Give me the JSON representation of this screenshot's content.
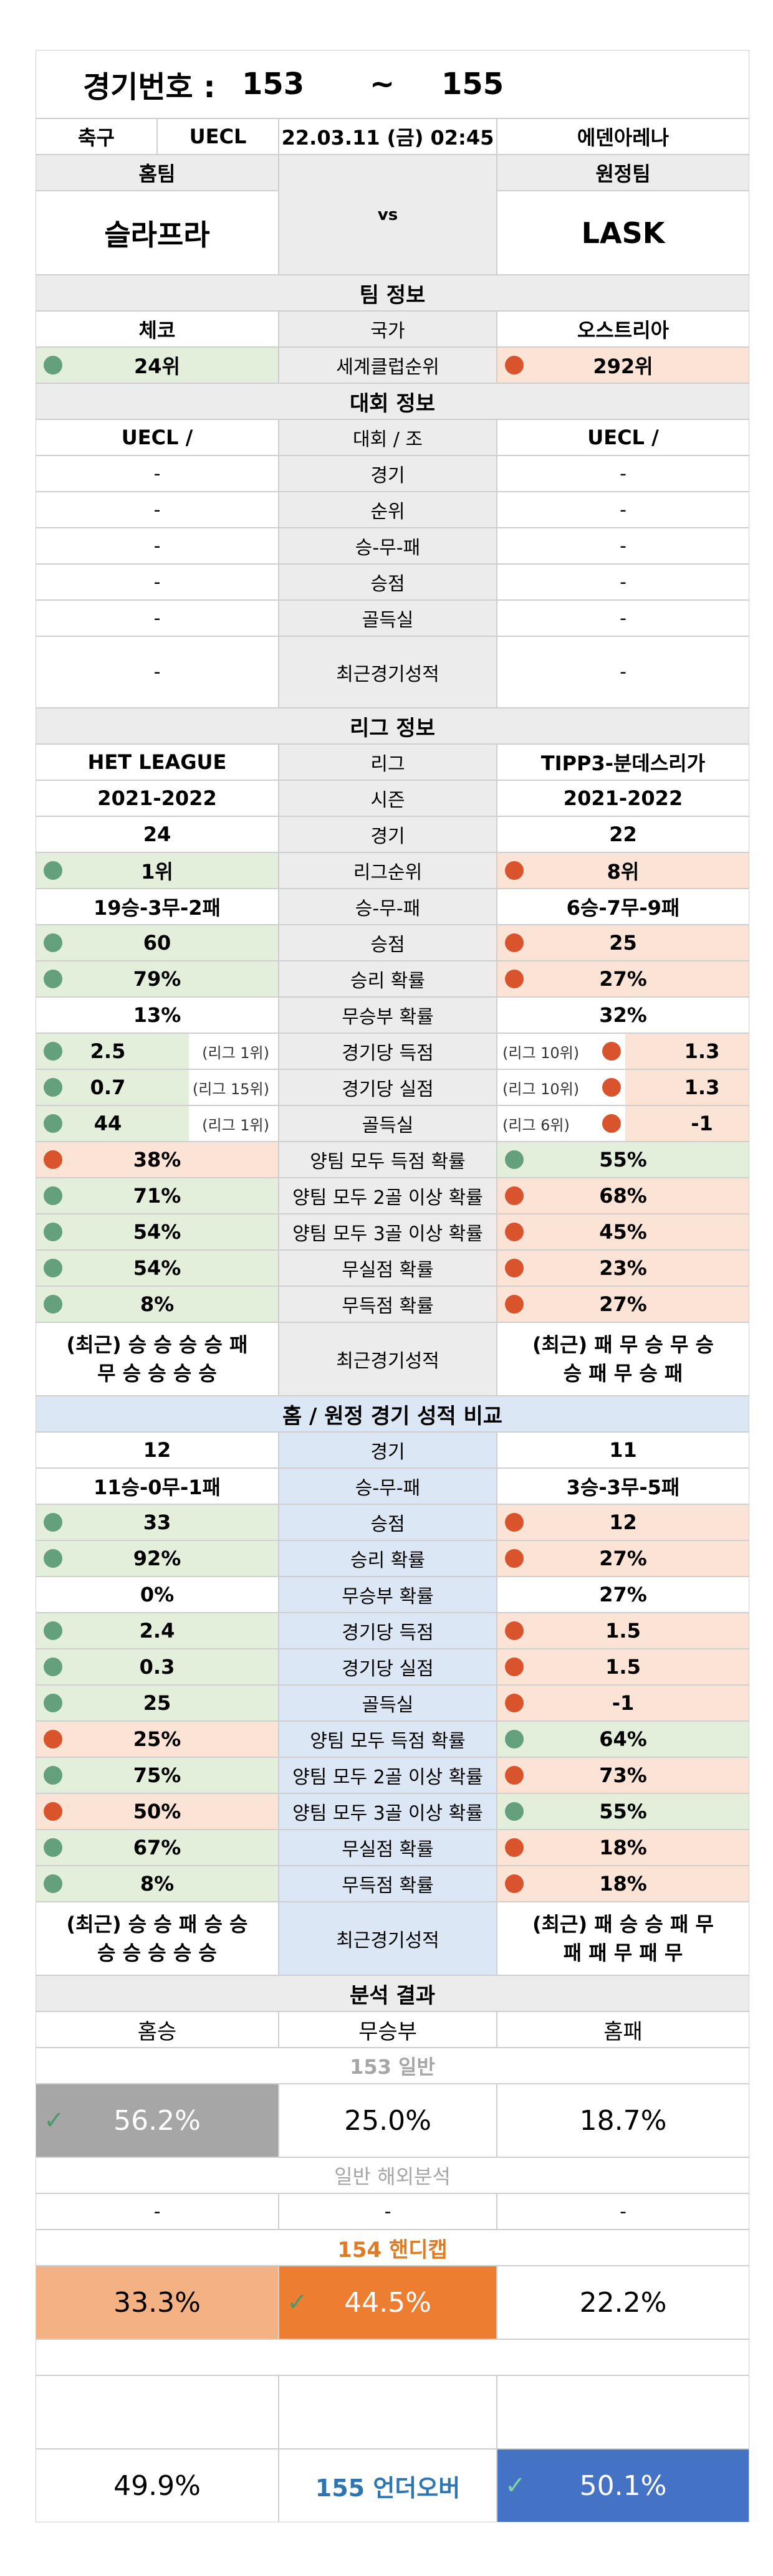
{
  "header": {
    "label": "경기번호 :",
    "from": "153",
    "tilde": "~",
    "to": "155",
    "sport": "축구",
    "league": "UECL",
    "datetime": "22.03.11 (금) 02:45",
    "venue": "에덴아레나",
    "home_label": "홈팀",
    "away_label": "원정팀",
    "vs": "vs",
    "home_team": "슬라프라",
    "away_team": "LASK"
  },
  "team_info": {
    "title": "팀 정보",
    "country_label": "국가",
    "home_country": "체코",
    "away_country": "오스트리아",
    "rank_label": "세계클럽순위",
    "home_rank": "24위",
    "away_rank": "292위"
  },
  "tournament": {
    "title": "대회 정보",
    "group_label": "대회 / 조",
    "home_group": "UECL /",
    "away_group": "UECL /",
    "dash": "-",
    "rows": [
      "경기",
      "순위",
      "승-무-패",
      "승점",
      "골득실"
    ],
    "recent_label": "최근경기성적"
  },
  "league": {
    "title": "리그 정보",
    "league_label": "리그",
    "home_league": "HET LEAGUE",
    "away_league": "TIPP3-분데스리가",
    "season_label": "시즌",
    "home_season": "2021-2022",
    "away_season": "2021-2022",
    "games_label": "경기",
    "home_games": "24",
    "away_games": "22",
    "rank_label": "리그순위",
    "home_rank": "1위",
    "away_rank": "8위",
    "wdl_label": "승-무-패",
    "home_wdl": "19승-3무-2패",
    "away_wdl": "6승-7무-9패",
    "points_label": "승점",
    "home_points": "60",
    "away_points": "25",
    "winp_label": "승리 확률",
    "home_winp": "79%",
    "away_winp": "27%",
    "drawp_label": "무승부 확률",
    "home_drawp": "13%",
    "away_drawp": "32%",
    "gf_label": "경기당 득점",
    "home_gf": "2.5",
    "home_gf_rank": "(리그 1위)",
    "away_gf": "1.3",
    "away_gf_rank": "(리그 10위)",
    "ga_label": "경기당 실점",
    "home_ga": "0.7",
    "home_ga_rank": "(리그 15위)",
    "away_ga": "1.3",
    "away_ga_rank": "(리그 10위)",
    "gd_label": "골득실",
    "home_gd": "44",
    "home_gd_rank": "(리그 1위)",
    "away_gd": "-1",
    "away_gd_rank": "(리그 6위)",
    "btts_label": "양팀 모두 득점 확률",
    "home_btts": "38%",
    "away_btts": "55%",
    "btts2_label": "양팀 모두 2골 이상 확률",
    "home_btts2": "71%",
    "away_btts2": "68%",
    "btts3_label": "양팀 모두 3골 이상 확률",
    "home_btts3": "54%",
    "away_btts3": "45%",
    "cs_label": "무실점 확률",
    "home_cs": "54%",
    "away_cs": "23%",
    "fts_label": "무득점 확률",
    "home_fts": "8%",
    "away_fts": "27%",
    "recent_label": "최근경기성적",
    "home_recent_1": "(최근) 승 승 승 승 패",
    "home_recent_2": "무 승 승 승 승",
    "away_recent_1": "(최근) 패 무 승 무 승",
    "away_recent_2": "승 패 무 승 패"
  },
  "homeaway": {
    "title": "홈 / 원정 경기 성적 비교",
    "games_label": "경기",
    "home_games": "12",
    "away_games": "11",
    "wdl_label": "승-무-패",
    "home_wdl": "11승-0무-1패",
    "away_wdl": "3승-3무-5패",
    "points_label": "승점",
    "home_points": "33",
    "away_points": "12",
    "winp_label": "승리 확률",
    "home_winp": "92%",
    "away_winp": "27%",
    "drawp_label": "무승부 확률",
    "home_drawp": "0%",
    "away_drawp": "27%",
    "gf_label": "경기당 득점",
    "home_gf": "2.4",
    "away_gf": "1.5",
    "ga_label": "경기당 실점",
    "home_ga": "0.3",
    "away_ga": "1.5",
    "gd_label": "골득실",
    "home_gd": "25",
    "away_gd": "-1",
    "btts_label": "양팀 모두 득점 확률",
    "home_btts": "25%",
    "away_btts": "64%",
    "btts2_label": "양팀 모두 2골 이상 확률",
    "home_btts2": "75%",
    "away_btts2": "73%",
    "btts3_label": "양팀 모두 3골 이상 확률",
    "home_btts3": "50%",
    "away_btts3": "55%",
    "cs_label": "무실점 확률",
    "home_cs": "67%",
    "away_cs": "18%",
    "fts_label": "무득점 확률",
    "home_fts": "8%",
    "away_fts": "18%",
    "recent_label": "최근경기성적",
    "home_recent_1": "(최근) 승 승 패 승 승",
    "home_recent_2": "승 승 승 승 승",
    "away_recent_1": "(최근) 패 승 승 패 무",
    "away_recent_2": "패 패 무 패 무"
  },
  "analysis": {
    "title": "분석 결과",
    "home_win": "홈승",
    "draw": "무승부",
    "home_loss": "홈패",
    "general_title": "153 일반",
    "general_home": "56.2%",
    "general_draw": "25.0%",
    "general_away": "18.7%",
    "overseas_title": "일반 해외분석",
    "dash": "-",
    "handicap_title": "154 핸디캡",
    "handicap_home": "33.3%",
    "handicap_draw": "44.5%",
    "handicap_away": "22.2%",
    "ou_label": "155 언더오버",
    "ou_under": "49.9%",
    "ou_over": "50.1%",
    "check": "✓"
  },
  "colors": {
    "green_bg": "#e3efdb",
    "orange_bg": "#fbe3d6",
    "green_dot": "#64a07c",
    "red_dot": "#d9532c",
    "gray_bg": "#ececec",
    "blue_bg": "#dbe7f4",
    "general_pick": "#a6a6a6",
    "handicap_home": "#f4b183",
    "handicap_pick": "#ed7d31",
    "ou_pick": "#4472c4",
    "handicap_title": "#e07b22",
    "ou_text": "#2e75b6",
    "muted_title": "#a6a6a6"
  }
}
